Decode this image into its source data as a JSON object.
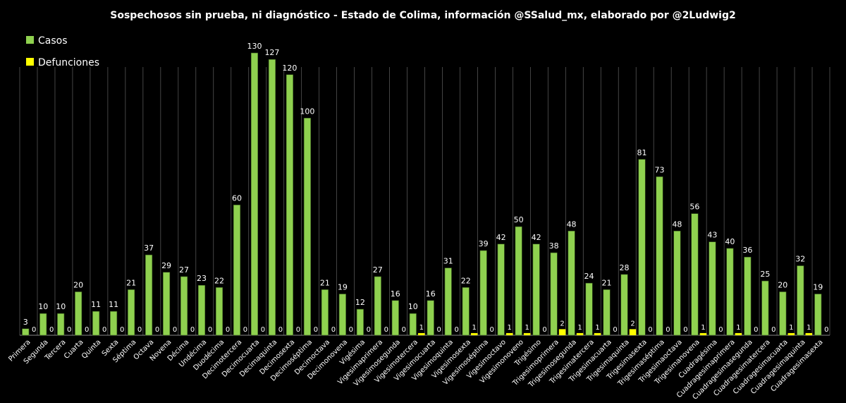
{
  "chart_data": {
    "type": "bar",
    "title": "Sospechosos sin prueba, ni diagnóstico - Estado de Colima, información @SSalud_mx, elaborado por @2Ludwig2",
    "xlabel": "",
    "ylabel": "",
    "ylim": [
      0,
      130
    ],
    "grid": true,
    "legend_position": "top-left",
    "categories": [
      "Primera",
      "Segunda",
      "Tercera",
      "Cuarta",
      "Quinta",
      "Sexta",
      "Séptima",
      "Octava",
      "Novena",
      "Décima",
      "Undécima",
      "Duodécima",
      "Decimotercera",
      "Decimocuarta",
      "Decimaquinta",
      "Decimosexta",
      "Decimoséptima",
      "Decimoctava",
      "Decimonovena",
      "Vigésima",
      "Vigesimaprimera",
      "Vigesimosegunda",
      "Vigesimotercera",
      "Vigesimocuarta",
      "Vigesimoquinta",
      "Vigesimosexta",
      "Vigesimoséptima",
      "Vigesimoctavo",
      "Vigesimonoveno",
      "Trigésimo",
      "Trigesimoprimera",
      "Trigesimosegunda",
      "Trigesimatercera",
      "Trigesimacuarta",
      "Trigesimaquinta",
      "Trigesimasexta",
      "Trigesimaséptima",
      "Trigesimaoctava",
      "Trigesimanovena",
      "Cuadragésima",
      "Cuadragesimaprimera",
      "Cuadragesimasegunda",
      "Cuadragesimatercera",
      "Cuadragesimacuarta",
      "Cuadragesimaquinta",
      "Cuadragesimasexta"
    ],
    "series": [
      {
        "name": "Casos",
        "color": "#8FD14F",
        "values": [
          3,
          10,
          10,
          20,
          11,
          11,
          21,
          37,
          29,
          27,
          23,
          22,
          60,
          130,
          127,
          120,
          100,
          21,
          19,
          12,
          27,
          16,
          10,
          16,
          31,
          22,
          39,
          42,
          50,
          42,
          38,
          48,
          24,
          21,
          28,
          81,
          73,
          48,
          56,
          43,
          40,
          36,
          25,
          20,
          32,
          19
        ]
      },
      {
        "name": "Defunciones",
        "color": "#FFFF00",
        "values": [
          0,
          0,
          0,
          0,
          0,
          0,
          0,
          0,
          0,
          0,
          0,
          0,
          0,
          0,
          0,
          0,
          0,
          0,
          0,
          0,
          0,
          0,
          1,
          0,
          0,
          1,
          0,
          1,
          1,
          0,
          2,
          1,
          1,
          0,
          2,
          0,
          0,
          0,
          1,
          0,
          1,
          0,
          0,
          1,
          1,
          0
        ]
      }
    ]
  }
}
